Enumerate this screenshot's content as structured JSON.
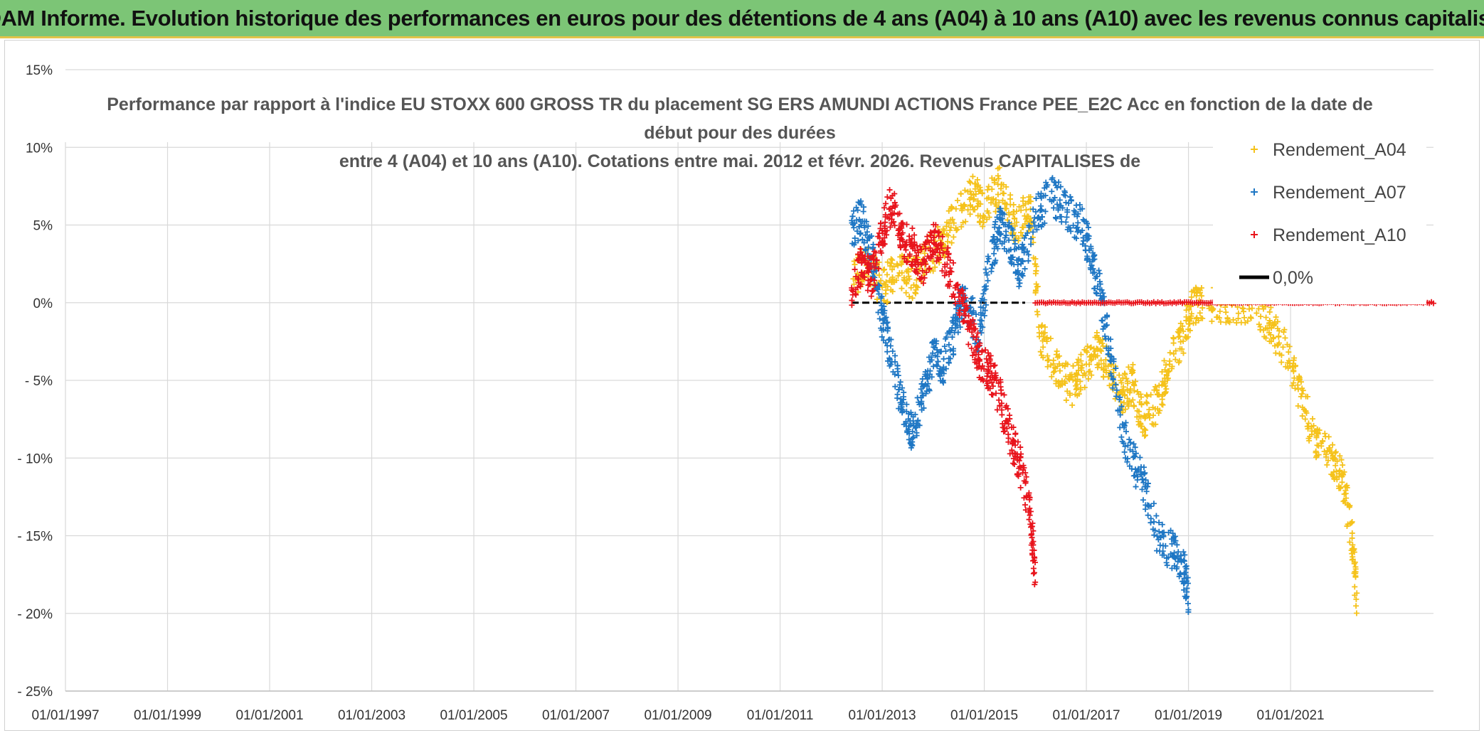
{
  "banner": {
    "title": "ADAM Informe. Evolution historique des performances en euros pour des détentions de 4 ans (A04) à 10 ans (A10) avec les revenus connus capitalisés"
  },
  "colors": {
    "banner_bg": "#7cc576",
    "A04": "#f5c21b",
    "A07": "#1f77c4",
    "A10": "#e8141c",
    "zero": "#000000",
    "grid": "#d9d9d9"
  },
  "chart_data": {
    "type": "scatter",
    "title_lines": [
      "Performance par rapport à l'indice EU STOXX 600 GROSS TR  du placement SG ERS AMUNDI ACTIONS France PEE_E2C Acc en fonction de la date de",
      "début pour des durées",
      "entre 4 (A04) et 10 ans (A10). Cotations entre mai. 2012 et févr. 2026. Revenus CAPITALISES de"
    ],
    "x_tick_labels": [
      "01/01/1997",
      "01/01/1999",
      "01/01/2001",
      "01/01/2003",
      "01/01/2005",
      "01/01/2007",
      "01/01/2009",
      "01/01/2011",
      "01/01/2013",
      "01/01/2015",
      "01/01/2017",
      "01/01/2019",
      "01/01/2021"
    ],
    "x_range": [
      1997.0,
      2023.8
    ],
    "y_tick_labels": [
      "15%",
      "10%",
      "5%",
      "0%",
      "- 5%",
      "- 10%",
      "- 15%",
      "- 20%",
      "- 25%"
    ],
    "y_ticks": [
      15,
      10,
      5,
      0,
      -5,
      -10,
      -15,
      -20,
      -25
    ],
    "y_range": [
      -25,
      15
    ],
    "legend": [
      "Rendement_A04",
      "Rendement_A07",
      "Rendement_A10",
      "0,0%"
    ],
    "series": [
      {
        "name": "Rendement_A04",
        "x": [
          2012.4,
          2012.7,
          2013.0,
          2013.3,
          2013.6,
          2013.9,
          2014.2,
          2014.5,
          2014.8,
          2015.0,
          2015.3,
          2015.6,
          2015.9,
          2016.1,
          2016.4,
          2016.7,
          2016.9,
          2017.2,
          2017.4,
          2017.7,
          2017.9,
          2018.1,
          2018.4,
          2018.6,
          2018.9,
          2019.1,
          2019.5,
          2019.9,
          2020.3,
          2020.6,
          2020.9,
          2021.2,
          2021.5,
          2021.8,
          2022.0,
          2022.2,
          2022.3
        ],
        "y": [
          1.5,
          2.5,
          1.0,
          2.0,
          1.5,
          3.0,
          4.0,
          6.0,
          7.0,
          6.0,
          7.5,
          5.0,
          6.0,
          -2.0,
          -4.0,
          -5.5,
          -4.5,
          -3.0,
          -4.0,
          -6.0,
          -5.0,
          -7.5,
          -6.5,
          -4.0,
          -2.0,
          0.0,
          0.0,
          0.0,
          0.0,
          -1.5,
          -3.0,
          -6.0,
          -9.0,
          -10.0,
          -11.0,
          -15.0,
          -19.5
        ]
      },
      {
        "name": "Rendement_A07",
        "x": [
          2012.4,
          2012.6,
          2012.8,
          2013.0,
          2013.2,
          2013.4,
          2013.6,
          2013.8,
          2014.0,
          2014.2,
          2014.4,
          2014.6,
          2014.9,
          2015.1,
          2015.3,
          2015.5,
          2015.7,
          2016.0,
          2016.3,
          2016.6,
          2016.9,
          2017.1,
          2017.3,
          2017.5,
          2017.8,
          2018.1,
          2018.4,
          2018.7,
          2018.9,
          2019.0
        ],
        "y": [
          4.5,
          5.5,
          3.0,
          -1.0,
          -4.0,
          -6.5,
          -8.5,
          -6.0,
          -3.5,
          -4.0,
          -2.0,
          0.5,
          -2.0,
          2.5,
          5.0,
          4.0,
          2.0,
          5.5,
          7.0,
          6.0,
          5.0,
          3.0,
          0.0,
          -4.0,
          -9.5,
          -11.5,
          -15.0,
          -16.0,
          -17.0,
          -19.0
        ]
      },
      {
        "name": "Rendement_A10",
        "x": [
          2012.4,
          2012.6,
          2012.8,
          2013.0,
          2013.2,
          2013.4,
          2013.6,
          2013.8,
          2014.0,
          2014.2,
          2014.5,
          2014.7,
          2014.9,
          2015.1,
          2015.3,
          2015.5,
          2015.7,
          2015.9,
          2016.0
        ],
        "y": [
          1.0,
          2.5,
          1.5,
          4.5,
          6.5,
          4.0,
          3.5,
          2.5,
          4.0,
          3.0,
          0.5,
          -1.5,
          -3.5,
          -4.5,
          -6.0,
          -8.5,
          -10.5,
          -13.5,
          -17.5
        ]
      }
    ],
    "zero_line": {
      "name": "0,0%",
      "value": 0,
      "x_start": 2012.4,
      "x_end": 2023.8
    }
  }
}
